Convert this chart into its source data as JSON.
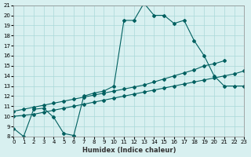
{
  "xlabel": "Humidex (Indice chaleur)",
  "xlim": [
    0,
    23
  ],
  "ylim": [
    8,
    21
  ],
  "xticks": [
    0,
    1,
    2,
    3,
    4,
    5,
    6,
    7,
    8,
    9,
    10,
    11,
    12,
    13,
    14,
    15,
    16,
    17,
    18,
    19,
    20,
    21,
    22,
    23
  ],
  "yticks": [
    8,
    9,
    10,
    11,
    12,
    13,
    14,
    15,
    16,
    17,
    18,
    19,
    20,
    21
  ],
  "bg_color": "#d8f0f0",
  "grid_color": "#aad8d8",
  "line_color": "#006060",
  "line1_x": [
    0,
    1,
    2,
    3,
    4,
    5,
    6,
    7,
    8,
    9,
    10,
    11,
    12,
    13,
    14,
    15,
    16,
    17,
    18,
    19,
    20,
    21,
    22,
    23
  ],
  "line1_y": [
    8.8,
    8.0,
    10.7,
    10.8,
    9.9,
    8.3,
    8.1,
    12.0,
    12.3,
    12.5,
    13.0,
    19.5,
    19.5,
    21.2,
    20.0,
    20.0,
    19.2,
    19.5,
    17.5,
    16.0,
    14.0,
    13.0,
    13.0,
    13.0
  ],
  "line2_x": [
    0,
    1,
    2,
    3,
    4,
    5,
    6,
    7,
    8,
    9,
    10,
    11,
    12,
    13,
    14,
    15,
    16,
    17,
    18,
    19,
    20,
    21,
    22,
    23
  ],
  "line2_y": [
    10.0,
    10.1,
    10.2,
    10.4,
    10.6,
    10.8,
    11.0,
    11.2,
    11.4,
    11.6,
    11.8,
    12.0,
    12.2,
    12.4,
    12.6,
    12.8,
    13.0,
    13.2,
    13.4,
    13.6,
    13.8,
    14.0,
    14.2,
    14.5
  ],
  "line3_x": [
    0,
    1,
    2,
    3,
    4,
    5,
    6,
    7,
    8,
    9,
    10,
    11,
    12,
    13,
    14,
    15,
    16,
    17,
    18,
    19,
    20,
    21
  ],
  "line3_y": [
    10.5,
    10.7,
    10.9,
    11.1,
    11.3,
    11.5,
    11.7,
    11.9,
    12.1,
    12.3,
    12.5,
    12.7,
    12.9,
    13.1,
    13.4,
    13.7,
    14.0,
    14.3,
    14.6,
    15.0,
    15.2,
    15.5
  ]
}
